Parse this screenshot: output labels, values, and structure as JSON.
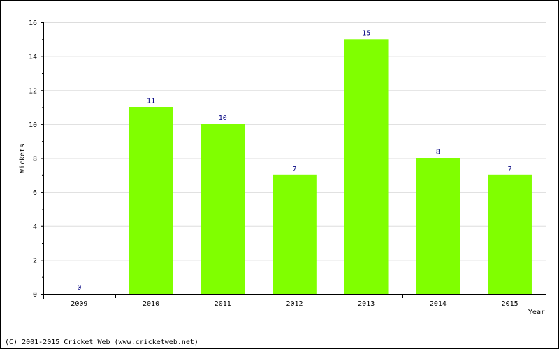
{
  "chart_data": {
    "type": "bar",
    "categories": [
      "2009",
      "2010",
      "2011",
      "2012",
      "2013",
      "2014",
      "2015"
    ],
    "values": [
      0,
      11,
      10,
      7,
      15,
      8,
      7
    ],
    "xlabel": "Year",
    "ylabel": "Wickets",
    "ylim": [
      0,
      16
    ],
    "yticks": [
      0,
      2,
      4,
      6,
      8,
      10,
      12,
      14,
      16
    ],
    "grid": true,
    "data_labels": true
  },
  "colors": {
    "bar": "#80ff00",
    "data_label": "#000080",
    "grid": "#dddddd",
    "axis": "#000000"
  },
  "footer": {
    "copyright": "(C) 2001-2015 Cricket Web (www.cricketweb.net)"
  }
}
